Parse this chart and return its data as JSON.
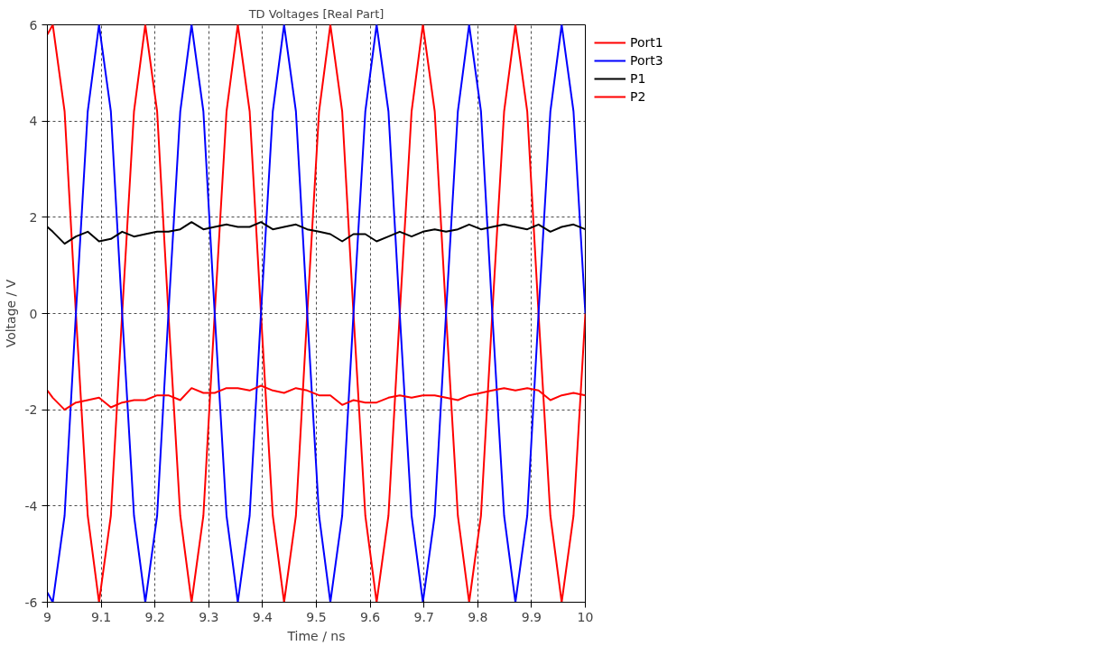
{
  "chart_data": {
    "type": "line",
    "title": "TD Voltages [Real Part]",
    "xlabel": "Time / ns",
    "ylabel": "Voltage / V",
    "x": [
      9.0,
      9.01,
      9.032,
      9.053,
      9.075,
      9.096,
      9.118,
      9.139,
      9.161,
      9.182,
      9.204,
      9.225,
      9.247,
      9.268,
      9.29,
      9.311,
      9.333,
      9.354,
      9.376,
      9.397,
      9.419,
      9.44,
      9.462,
      9.483,
      9.505,
      9.526,
      9.548,
      9.569,
      9.591,
      9.612,
      9.634,
      9.655,
      9.677,
      9.698,
      9.72,
      9.741,
      9.763,
      9.784,
      9.806,
      9.827,
      9.849,
      9.87,
      9.892,
      9.913,
      9.935,
      9.956,
      9.978,
      10.0
    ],
    "series": [
      {
        "name": "Port1",
        "color": "#ff0000",
        "values": [
          5.8,
          6,
          4.2,
          0,
          -4.2,
          -6,
          -4.2,
          0,
          4.2,
          6,
          4.2,
          0,
          -4.2,
          -6,
          -4.2,
          0,
          4.2,
          6,
          4.2,
          0,
          -4.2,
          -6,
          -4.2,
          0,
          4.2,
          6,
          4.2,
          0,
          -4.2,
          -6,
          -4.2,
          0,
          4.2,
          6,
          4.2,
          0,
          -4.2,
          -6,
          -4.2,
          0,
          4.2,
          6,
          4.2,
          0,
          -4.2,
          -6,
          -4.2,
          0
        ]
      },
      {
        "name": "Port3",
        "color": "#0000ff",
        "values": [
          -5.8,
          -6,
          -4.2,
          0,
          4.2,
          6,
          4.2,
          0,
          -4.2,
          -6,
          -4.2,
          0,
          4.2,
          6,
          4.2,
          0,
          -4.2,
          -6,
          -4.2,
          0,
          4.2,
          6,
          4.2,
          0,
          -4.2,
          -6,
          -4.2,
          0,
          4.2,
          6,
          4.2,
          0,
          -4.2,
          -6,
          -4.2,
          0,
          4.2,
          6,
          4.2,
          0,
          -4.2,
          -6,
          -4.2,
          0,
          4.2,
          6,
          4.2,
          0
        ]
      },
      {
        "name": "P1",
        "color": "#000000",
        "values": [
          1.8,
          1.7,
          1.45,
          1.6,
          1.7,
          1.5,
          1.55,
          1.7,
          1.6,
          1.65,
          1.7,
          1.7,
          1.75,
          1.9,
          1.75,
          1.8,
          1.85,
          1.8,
          1.8,
          1.9,
          1.75,
          1.8,
          1.85,
          1.75,
          1.7,
          1.65,
          1.5,
          1.65,
          1.65,
          1.5,
          1.6,
          1.7,
          1.6,
          1.7,
          1.75,
          1.7,
          1.75,
          1.85,
          1.75,
          1.8,
          1.85,
          1.8,
          1.75,
          1.85,
          1.7,
          1.8,
          1.85,
          1.75
        ]
      },
      {
        "name": "P2",
        "color": "#ff0000",
        "values": [
          -1.6,
          -1.75,
          -2.0,
          -1.85,
          -1.8,
          -1.75,
          -1.95,
          -1.85,
          -1.8,
          -1.8,
          -1.7,
          -1.7,
          -1.8,
          -1.55,
          -1.65,
          -1.65,
          -1.55,
          -1.55,
          -1.6,
          -1.5,
          -1.6,
          -1.65,
          -1.55,
          -1.6,
          -1.7,
          -1.7,
          -1.9,
          -1.8,
          -1.85,
          -1.85,
          -1.75,
          -1.7,
          -1.75,
          -1.7,
          -1.7,
          -1.75,
          -1.8,
          -1.7,
          -1.65,
          -1.6,
          -1.55,
          -1.6,
          -1.55,
          -1.6,
          -1.8,
          -1.7,
          -1.65,
          -1.7
        ]
      }
    ],
    "xlim": [
      9,
      10
    ],
    "xticks": [
      9,
      9.1,
      9.2,
      9.3,
      9.4,
      9.5,
      9.6,
      9.7,
      9.8,
      9.9,
      10
    ],
    "ylim": [
      -6,
      6
    ],
    "yticks": [
      -6,
      -4,
      -2,
      0,
      2,
      4,
      6
    ],
    "grid": true,
    "legend": "right",
    "line_style": "solid",
    "marker": "none"
  }
}
